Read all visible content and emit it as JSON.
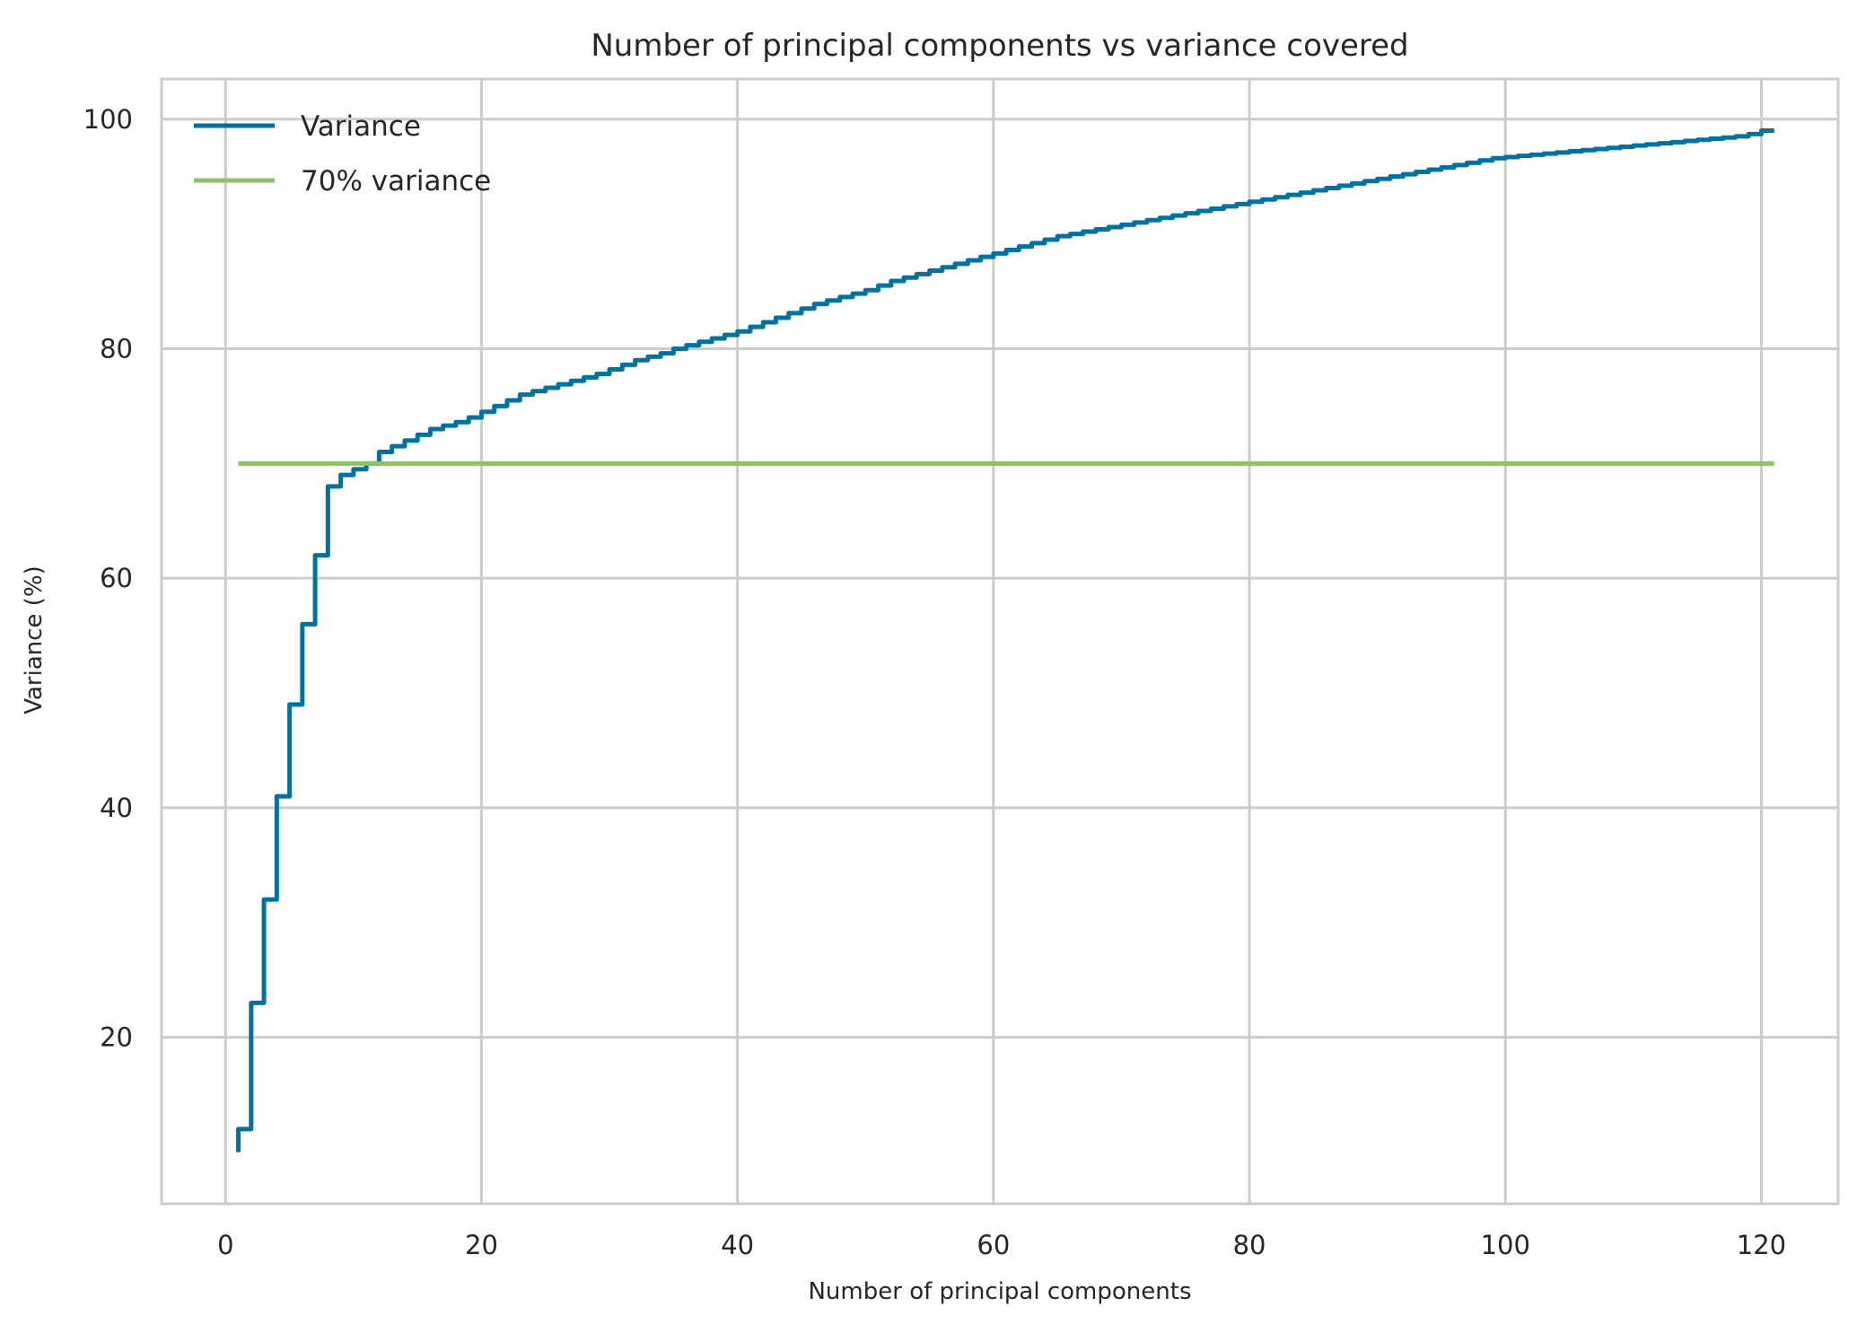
{
  "chart_data": {
    "type": "line",
    "title": "Number of principal components vs variance covered",
    "xlabel": "Number of principal components",
    "ylabel": "Variance (%)",
    "xlim": [
      -5,
      126
    ],
    "ylim": [
      5.5,
      103.5
    ],
    "xticks": [
      0,
      20,
      40,
      60,
      80,
      100,
      120
    ],
    "yticks": [
      20,
      40,
      60,
      80,
      100
    ],
    "grid": true,
    "legend_position": "top-left",
    "colors": {
      "variance": "#0072a0",
      "threshold": "#8fc06c",
      "grid": "#cccccc",
      "spine": "#cccccc",
      "text": "#262626",
      "background": "#ffffff"
    },
    "series": [
      {
        "name": "Variance",
        "color": "#0072a0",
        "step": true,
        "x": [
          1,
          2,
          3,
          4,
          5,
          6,
          7,
          8,
          9,
          10,
          11,
          12,
          13,
          14,
          15,
          16,
          17,
          18,
          19,
          20,
          21,
          22,
          23,
          24,
          25,
          26,
          27,
          28,
          29,
          30,
          31,
          32,
          33,
          34,
          35,
          36,
          37,
          38,
          39,
          40,
          41,
          42,
          43,
          44,
          45,
          46,
          47,
          48,
          49,
          50,
          51,
          52,
          53,
          54,
          55,
          56,
          57,
          58,
          59,
          60,
          61,
          62,
          63,
          64,
          65,
          66,
          67,
          68,
          69,
          70,
          71,
          72,
          73,
          74,
          75,
          76,
          77,
          78,
          79,
          80,
          81,
          82,
          83,
          84,
          85,
          86,
          87,
          88,
          89,
          90,
          91,
          92,
          93,
          94,
          95,
          96,
          97,
          98,
          99,
          100,
          101,
          102,
          103,
          104,
          105,
          106,
          107,
          108,
          109,
          110,
          111,
          112,
          113,
          114,
          115,
          116,
          117,
          118,
          119,
          120,
          121
        ],
        "y": [
          10,
          12,
          23,
          32,
          41,
          49,
          56,
          62,
          68,
          69,
          69.5,
          70,
          71,
          71.5,
          72,
          72.5,
          73,
          73.3,
          73.6,
          74,
          74.5,
          75,
          75.5,
          76,
          76.3,
          76.6,
          76.9,
          77.2,
          77.5,
          77.8,
          78.2,
          78.6,
          79,
          79.3,
          79.6,
          80,
          80.3,
          80.6,
          80.9,
          81.2,
          81.5,
          81.9,
          82.3,
          82.7,
          83.1,
          83.5,
          83.9,
          84.2,
          84.5,
          84.8,
          85.1,
          85.5,
          85.9,
          86.2,
          86.5,
          86.8,
          87.1,
          87.4,
          87.7,
          88,
          88.3,
          88.6,
          88.9,
          89.2,
          89.5,
          89.8,
          90,
          90.2,
          90.4,
          90.6,
          90.8,
          91,
          91.2,
          91.4,
          91.6,
          91.8,
          92,
          92.2,
          92.4,
          92.6,
          92.8,
          93,
          93.2,
          93.4,
          93.6,
          93.8,
          94,
          94.2,
          94.4,
          94.6,
          94.8,
          95,
          95.2,
          95.4,
          95.6,
          95.8,
          96,
          96.2,
          96.4,
          96.6,
          96.7,
          96.8,
          96.9,
          97,
          97.1,
          97.2,
          97.3,
          97.4,
          97.5,
          97.6,
          97.7,
          97.8,
          97.9,
          98,
          98.1,
          98.2,
          98.3,
          98.4,
          98.5,
          98.7,
          99
        ]
      },
      {
        "name": "70% variance",
        "color": "#8fc06c",
        "step": false,
        "x": [
          1,
          121
        ],
        "y": [
          70,
          70
        ]
      }
    ]
  }
}
